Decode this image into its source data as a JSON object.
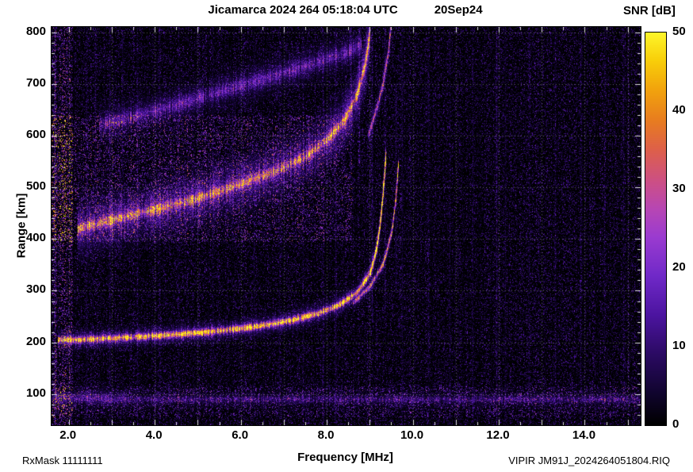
{
  "header": {
    "title": "Jicamarca 2024 264 05:18:04 UTC",
    "date": "20Sep24",
    "colorbar_title": "SNR [dB]"
  },
  "footer": {
    "rx_mask": "RxMask 11111111",
    "xlabel": "Frequency [MHz]",
    "file": "VIPIR  JM91J_2024264051804.RIQ"
  },
  "axes": {
    "x": {
      "label": "Frequency [MHz]",
      "tick_values": [
        2,
        4,
        6,
        8,
        10,
        12,
        14
      ],
      "tick_labels": [
        "2.0",
        "4.0",
        "6.0",
        "8.0",
        "10.0",
        "12.0",
        "14.0"
      ],
      "grid_step": 1,
      "minor_step": 0.5
    },
    "y": {
      "label": "Range [km]",
      "tick_values": [
        100,
        200,
        300,
        400,
        500,
        600,
        700,
        800
      ],
      "tick_labels": [
        "100",
        "200",
        "300",
        "400",
        "500",
        "600",
        "700",
        "800"
      ],
      "grid_step": 100,
      "minor_step": 20
    },
    "colorbar": {
      "title": "SNR [dB]",
      "tick_values": [
        0,
        10,
        20,
        30,
        40,
        50
      ],
      "tick_labels": [
        "0",
        "10",
        "20",
        "30",
        "40",
        "50"
      ]
    }
  },
  "chart_data": {
    "type": "heatmap",
    "title": "Jicamarca 2024 264 05:18:04 UTC 20Sep24",
    "xlabel": "Frequency [MHz]",
    "ylabel": "Range [km]",
    "zlabel": "SNR [dB]",
    "xlim": [
      1.6,
      15.3
    ],
    "ylim": [
      40,
      810
    ],
    "zlim": [
      0,
      50
    ],
    "grid": true,
    "colormap": [
      [
        0.0,
        "#000000"
      ],
      [
        0.08,
        "#10042e"
      ],
      [
        0.18,
        "#2b0a63"
      ],
      [
        0.28,
        "#4c14a0"
      ],
      [
        0.38,
        "#7029c8"
      ],
      [
        0.48,
        "#9b3bd0"
      ],
      [
        0.55,
        "#b746b4"
      ],
      [
        0.62,
        "#cc4f86"
      ],
      [
        0.7,
        "#dd5f4b"
      ],
      [
        0.78,
        "#e87e1e"
      ],
      [
        0.86,
        "#f2a60c"
      ],
      [
        0.93,
        "#f8cf0a"
      ],
      [
        1.0,
        "#fdf52a"
      ]
    ],
    "traces": [
      {
        "name": "F-layer 1st hop O-mode",
        "core_db": 42,
        "core_sigma_km": 3.5,
        "halo_db": 13,
        "halo_sigma_km": 10,
        "points": [
          [
            1.75,
            205
          ],
          [
            2.5,
            207
          ],
          [
            3.5,
            211
          ],
          [
            4.5,
            216
          ],
          [
            5.5,
            223
          ],
          [
            6.5,
            233
          ],
          [
            7.2,
            244
          ],
          [
            7.8,
            257
          ],
          [
            8.3,
            274
          ],
          [
            8.7,
            297
          ],
          [
            9.0,
            335
          ],
          [
            9.15,
            380
          ],
          [
            9.25,
            440
          ],
          [
            9.33,
            520
          ],
          [
            9.37,
            565
          ]
        ]
      },
      {
        "name": "F-layer 1st hop X-mode",
        "core_db": 27,
        "core_sigma_km": 3,
        "halo_db": 7,
        "halo_sigma_km": 8,
        "points": [
          [
            8.6,
            278
          ],
          [
            9.0,
            308
          ],
          [
            9.3,
            352
          ],
          [
            9.5,
            412
          ],
          [
            9.6,
            480
          ],
          [
            9.66,
            548
          ]
        ]
      },
      {
        "name": "F-layer 2nd hop spread",
        "core_db": 26,
        "core_sigma_km": 6,
        "halo_db": 13,
        "halo_sigma_km": 28,
        "points": [
          [
            2.2,
            420
          ],
          [
            3.0,
            438
          ],
          [
            4.0,
            458
          ],
          [
            5.0,
            480
          ],
          [
            6.0,
            507
          ],
          [
            6.8,
            532
          ],
          [
            7.5,
            560
          ],
          [
            8.0,
            592
          ],
          [
            8.4,
            630
          ],
          [
            8.7,
            680
          ],
          [
            8.9,
            742
          ],
          [
            9.0,
            805
          ]
        ]
      },
      {
        "name": "F-layer 2nd hop X-mode",
        "core_db": 17,
        "core_sigma_km": 4,
        "halo_db": 7,
        "halo_sigma_km": 12,
        "points": [
          [
            8.95,
            600
          ],
          [
            9.15,
            650
          ],
          [
            9.3,
            700
          ],
          [
            9.42,
            760
          ],
          [
            9.48,
            805
          ]
        ]
      },
      {
        "name": "F-layer 3rd hop faint",
        "core_db": 10,
        "core_sigma_km": 8,
        "halo_db": 6,
        "halo_sigma_km": 20,
        "points": [
          [
            2.7,
            622
          ],
          [
            3.6,
            640
          ],
          [
            4.6,
            662
          ],
          [
            5.6,
            688
          ],
          [
            6.6,
            712
          ],
          [
            7.6,
            738
          ],
          [
            8.4,
            760
          ],
          [
            8.8,
            776
          ]
        ]
      },
      {
        "name": "E-region band",
        "core_db": 7,
        "core_sigma_km": 4,
        "halo_db": 3,
        "halo_sigma_km": 12,
        "points": [
          [
            1.6,
            90
          ],
          [
            15.3,
            90
          ]
        ]
      },
      {
        "name": "E-region patch left",
        "core_db": 10,
        "core_sigma_km": 6,
        "halo_db": 4,
        "halo_sigma_km": 14,
        "points": [
          [
            1.7,
            95
          ],
          [
            3.3,
            92
          ]
        ]
      }
    ],
    "rfi_lines": [
      {
        "f": 1.68,
        "amp": 9
      },
      {
        "f": 2.42,
        "amp": 3
      },
      {
        "f": 2.62,
        "amp": 4,
        "r0": 420,
        "r1": 810
      },
      {
        "f": 2.95,
        "amp": 3
      },
      {
        "f": 3.25,
        "amp": 4,
        "r0": 420,
        "r1": 810
      },
      {
        "f": 3.6,
        "amp": 3
      },
      {
        "f": 4.1,
        "amp": 2.5
      },
      {
        "f": 4.55,
        "amp": 3
      },
      {
        "f": 5.35,
        "amp": 2.5
      },
      {
        "f": 5.8,
        "amp": 3,
        "r0": 380,
        "r1": 700
      },
      {
        "f": 6.3,
        "amp": 2.5
      },
      {
        "f": 6.9,
        "amp": 3
      },
      {
        "f": 7.45,
        "amp": 3
      },
      {
        "f": 7.9,
        "amp": 3.5
      },
      {
        "f": 8.2,
        "amp": 4
      },
      {
        "f": 8.55,
        "amp": 5,
        "r0": 520,
        "r1": 810
      },
      {
        "f": 8.75,
        "amp": 7,
        "r0": 540,
        "r1": 810
      },
      {
        "f": 9.05,
        "amp": 6,
        "r0": 240,
        "r1": 810
      },
      {
        "f": 9.35,
        "amp": 5,
        "r0": 260,
        "r1": 810
      },
      {
        "f": 9.6,
        "amp": 5,
        "r0": 300,
        "r1": 700
      },
      {
        "f": 9.75,
        "amp": 4
      },
      {
        "f": 10.35,
        "amp": 3
      },
      {
        "f": 10.85,
        "amp": 2.5
      },
      {
        "f": 11.4,
        "amp": 3
      },
      {
        "f": 11.95,
        "amp": 5
      },
      {
        "f": 12.15,
        "amp": 3
      },
      {
        "f": 12.7,
        "amp": 2.5
      },
      {
        "f": 13.3,
        "amp": 3
      },
      {
        "f": 13.9,
        "amp": 2.5
      },
      {
        "f": 14.45,
        "amp": 3
      },
      {
        "f": 14.9,
        "amp": 3
      }
    ],
    "noise": {
      "speckle_db": 14,
      "speckle_pow": 5,
      "col_var": 0.8,
      "boosts": [
        {
          "f0": 1.6,
          "f1": 8.6,
          "r0": 395,
          "r1": 640,
          "mult": 1.9
        },
        {
          "f0": 1.6,
          "f1": 15.3,
          "r0": 55,
          "r1": 115,
          "mult": 1.5
        },
        {
          "f0": 1.6,
          "f1": 2.1,
          "r0": 40,
          "r1": 810,
          "mult": 2.0
        }
      ]
    }
  }
}
